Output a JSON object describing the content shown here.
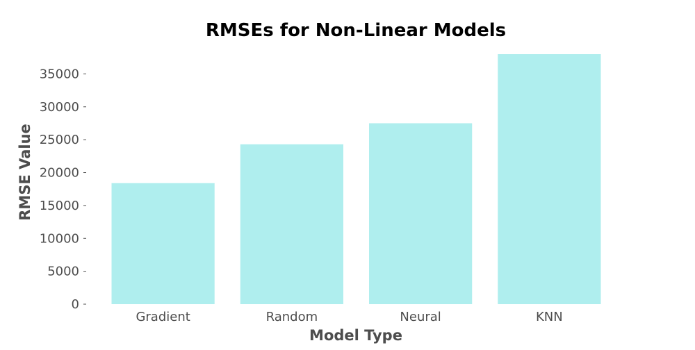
{
  "chart_data": {
    "type": "bar",
    "title": "RMSEs for Non-Linear Models",
    "xlabel": "Model Type",
    "ylabel": "RMSE Value",
    "categories": [
      "Gradient",
      "Random",
      "Neural",
      "KNN"
    ],
    "values": [
      18400,
      24300,
      27500,
      38000
    ],
    "ylim": [
      0,
      38000
    ],
    "yticks": [
      0,
      5000,
      10000,
      15000,
      20000,
      25000,
      30000,
      35000
    ],
    "grid": false,
    "bar_color": "#afeeee",
    "text_color": "#4d4d4d"
  }
}
